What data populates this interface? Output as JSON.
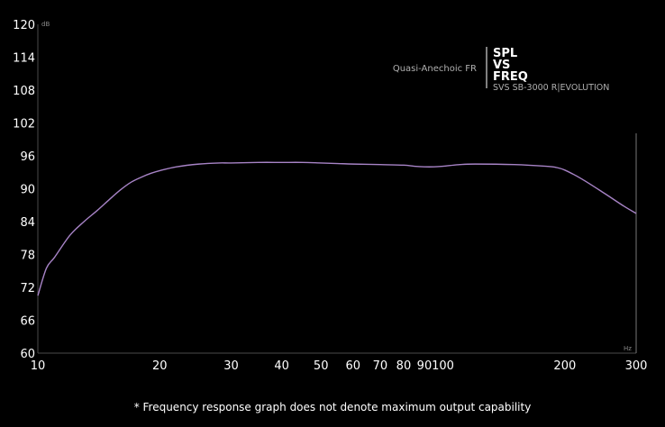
{
  "chart_data": {
    "type": "line",
    "title_lines": [
      "SPL",
      "VS",
      "FREQ"
    ],
    "model": "SVS SB-3000 R|EVOLUTION",
    "subtitle": "Quasi-Anechoic FR",
    "y_unit": "dB",
    "x_unit": "Hz",
    "x_scale": "log",
    "xlim": [
      10,
      300
    ],
    "ylim": [
      60,
      120
    ],
    "yticks": [
      60,
      66,
      72,
      78,
      84,
      90,
      96,
      102,
      108,
      114,
      120
    ],
    "xticks": [
      10,
      20,
      30,
      40,
      50,
      60,
      70,
      80,
      90,
      100,
      200,
      300
    ],
    "grid": false,
    "line_color": "#a783c6",
    "series": [
      {
        "x": [
          10,
          10.5,
          11,
          12,
          13,
          14,
          15,
          16,
          17,
          18,
          19,
          20,
          22,
          25,
          28,
          30,
          35,
          40,
          45,
          50,
          55,
          60,
          70,
          80,
          85,
          90,
          95,
          100,
          110,
          120,
          150,
          180,
          190,
          200,
          220,
          250,
          280,
          300
        ],
        "y": [
          70.5,
          75.5,
          77.5,
          81.5,
          84,
          86,
          88,
          89.8,
          91.2,
          92.1,
          92.8,
          93.3,
          94,
          94.5,
          94.7,
          94.7,
          94.8,
          94.8,
          94.8,
          94.7,
          94.6,
          94.5,
          94.4,
          94.3,
          94.1,
          94.0,
          94.0,
          94.1,
          94.4,
          94.5,
          94.4,
          94.1,
          93.9,
          93.4,
          91.8,
          89.2,
          86.8,
          85.5
        ]
      }
    ]
  },
  "footnote": "* Frequency response graph does not denote maximum output capability"
}
